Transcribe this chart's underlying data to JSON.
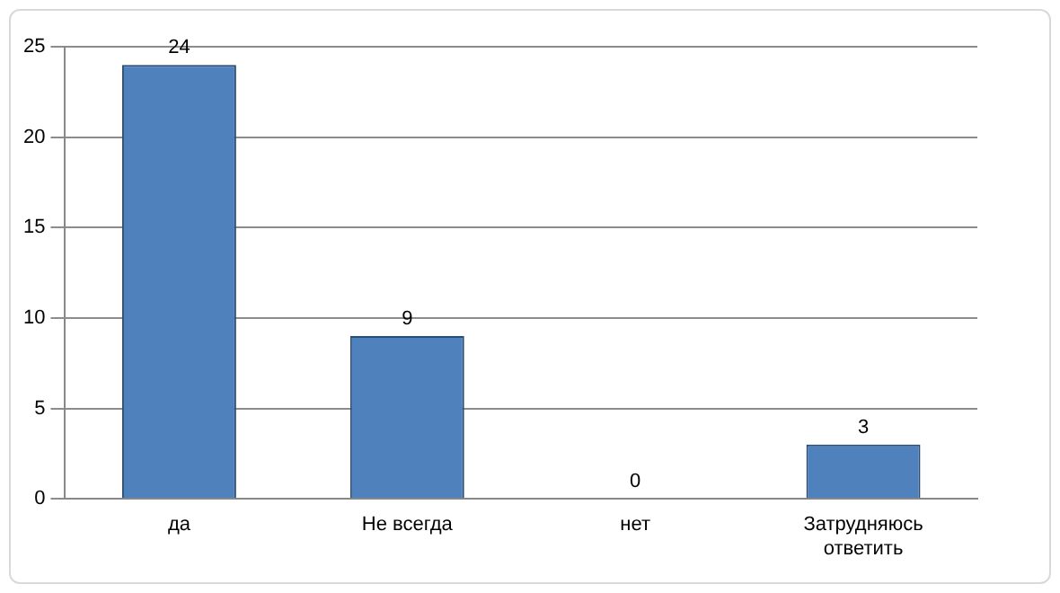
{
  "chart_data": {
    "type": "bar",
    "categories": [
      "да",
      "Не всегда",
      "нет",
      "Затрудняюсь ответить"
    ],
    "values": [
      24,
      9,
      0,
      3
    ],
    "color": "#4f81bd",
    "ylim": [
      0,
      25
    ],
    "yticks": [
      0,
      5,
      10,
      15,
      20,
      25
    ],
    "grid": "y",
    "data_labels": true
  }
}
